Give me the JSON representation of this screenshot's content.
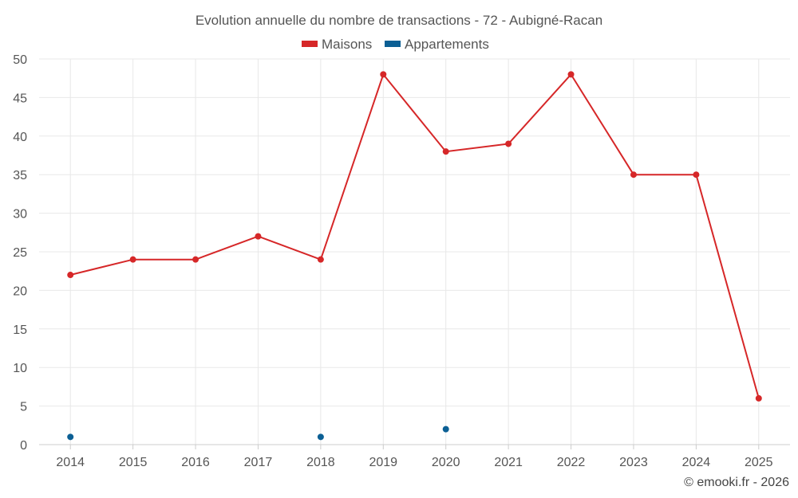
{
  "chart_data": {
    "type": "line",
    "title": "Evolution annuelle du nombre de transactions - 72 - Aubigné-Racan",
    "categories": [
      "2014",
      "2015",
      "2016",
      "2017",
      "2018",
      "2019",
      "2020",
      "2021",
      "2022",
      "2023",
      "2024",
      "2025"
    ],
    "series": [
      {
        "name": "Maisons",
        "color": "#d62728",
        "values": [
          22,
          24,
          24,
          27,
          24,
          48,
          38,
          39,
          48,
          35,
          35,
          6
        ]
      },
      {
        "name": "Appartements",
        "color": "#0b5f94",
        "values": [
          1,
          null,
          null,
          null,
          1,
          null,
          2,
          null,
          null,
          null,
          null,
          null
        ]
      }
    ],
    "ylim": [
      0,
      50
    ],
    "yticks": [
      0,
      5,
      10,
      15,
      20,
      25,
      30,
      35,
      40,
      45,
      50
    ],
    "grid": true,
    "legend_position": "top-center"
  },
  "credit": "© emooki.fr - 2026"
}
